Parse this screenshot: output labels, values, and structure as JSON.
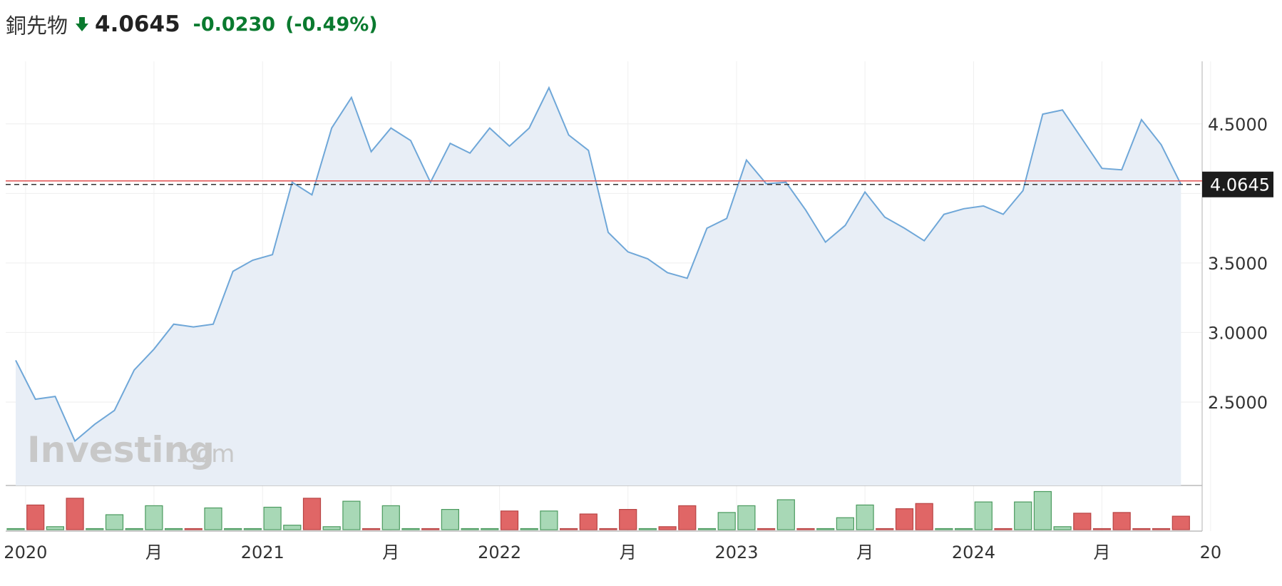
{
  "header": {
    "name": "銅先物",
    "price": "4.0645",
    "change": "-0.0230",
    "change_pct": "(-0.49%)",
    "direction_icon": "arrow-down-icon",
    "down_color": "#0a7a2f"
  },
  "watermark": {
    "brand": "Investing",
    "suffix": ".com"
  },
  "chart_data": {
    "type": "area",
    "title": "",
    "xlabel": "",
    "ylabel": "",
    "ylim": [
      1.9,
      4.95
    ],
    "y_ticks": [
      2.5,
      3.0,
      3.5,
      4.5
    ],
    "y_tick_labels": [
      "2.5000",
      "3.0000",
      "3.5000",
      "4.5000"
    ],
    "x_ticks": [
      {
        "label": "2020",
        "i": 0.5
      },
      {
        "label": "月",
        "i": 7
      },
      {
        "label": "2021",
        "i": 12.5
      },
      {
        "label": "月",
        "i": 19
      },
      {
        "label": "2022",
        "i": 24.5
      },
      {
        "label": "月",
        "i": 31
      },
      {
        "label": "2023",
        "i": 36.5
      },
      {
        "label": "月",
        "i": 43
      },
      {
        "label": "2024",
        "i": 48.5
      },
      {
        "label": "月",
        "i": 55
      },
      {
        "label": "20",
        "i": 60.5
      }
    ],
    "last_price": 4.0645,
    "last_price_label": "4.0645",
    "reference_line": 4.09,
    "grid": true,
    "line_color": "#6fa7d8",
    "fill_color": "#e8eef6",
    "up_color": "#a8d8b6",
    "down_color": "#e06666",
    "series": [
      {
        "values": [
          2.8,
          2.52,
          2.54,
          2.22,
          2.34,
          2.44,
          2.73,
          2.88,
          3.06,
          3.04,
          3.06,
          3.44,
          3.52,
          3.56,
          4.08,
          3.99,
          4.47,
          4.69,
          4.3,
          4.47,
          4.38,
          4.08,
          4.36,
          4.29,
          4.47,
          4.34,
          4.47,
          4.76,
          4.42,
          4.31,
          3.72,
          3.58,
          3.53,
          3.43,
          3.39,
          3.75,
          3.82,
          4.24,
          4.07,
          4.08,
          3.88,
          3.65,
          3.77,
          4.01,
          3.83,
          3.75,
          3.66,
          3.85,
          3.89,
          3.91,
          3.85,
          4.02,
          4.57,
          4.6,
          4.39,
          4.18,
          4.17,
          4.53,
          4.35,
          4.0645
        ]
      }
    ],
    "volume": [
      {
        "v": 1,
        "up": true
      },
      {
        "v": 33,
        "up": false
      },
      {
        "v": 4,
        "up": true
      },
      {
        "v": 42,
        "up": false
      },
      {
        "v": 1,
        "up": true
      },
      {
        "v": 20,
        "up": true
      },
      {
        "v": 1,
        "up": true
      },
      {
        "v": 32,
        "up": true
      },
      {
        "v": 0,
        "up": true
      },
      {
        "v": 1,
        "up": false
      },
      {
        "v": 29,
        "up": true
      },
      {
        "v": 0,
        "up": true
      },
      {
        "v": 1,
        "up": true
      },
      {
        "v": 30,
        "up": true
      },
      {
        "v": 6,
        "up": true
      },
      {
        "v": 42,
        "up": false
      },
      {
        "v": 4,
        "up": true
      },
      {
        "v": 38,
        "up": true
      },
      {
        "v": 1,
        "up": false
      },
      {
        "v": 32,
        "up": true
      },
      {
        "v": 0,
        "up": true
      },
      {
        "v": 1,
        "up": false
      },
      {
        "v": 27,
        "up": true
      },
      {
        "v": 0,
        "up": true
      },
      {
        "v": 1,
        "up": true
      },
      {
        "v": 25,
        "up": false
      },
      {
        "v": 1,
        "up": true
      },
      {
        "v": 25,
        "up": true
      },
      {
        "v": 1,
        "up": false
      },
      {
        "v": 21,
        "up": false
      },
      {
        "v": 1,
        "up": false
      },
      {
        "v": 27,
        "up": false
      },
      {
        "v": 0,
        "up": true
      },
      {
        "v": 4,
        "up": false
      },
      {
        "v": 32,
        "up": false
      },
      {
        "v": 1,
        "up": true
      },
      {
        "v": 23,
        "up": true
      },
      {
        "v": 32,
        "up": true
      },
      {
        "v": 1,
        "up": false
      },
      {
        "v": 40,
        "up": true
      },
      {
        "v": 1,
        "up": false
      },
      {
        "v": 0,
        "up": true
      },
      {
        "v": 16,
        "up": true
      },
      {
        "v": 33,
        "up": true
      },
      {
        "v": 1,
        "up": false
      },
      {
        "v": 28,
        "up": false
      },
      {
        "v": 35,
        "up": false
      },
      {
        "v": 1,
        "up": true
      },
      {
        "v": 1,
        "up": true
      },
      {
        "v": 37,
        "up": true
      },
      {
        "v": 1,
        "up": false
      },
      {
        "v": 37,
        "up": true
      },
      {
        "v": 51,
        "up": true
      },
      {
        "v": 4,
        "up": true
      },
      {
        "v": 22,
        "up": false
      },
      {
        "v": 1,
        "up": false
      },
      {
        "v": 23,
        "up": false
      },
      {
        "v": 1,
        "up": false
      },
      {
        "v": 1,
        "up": false
      },
      {
        "v": 18,
        "up": false
      }
    ]
  }
}
